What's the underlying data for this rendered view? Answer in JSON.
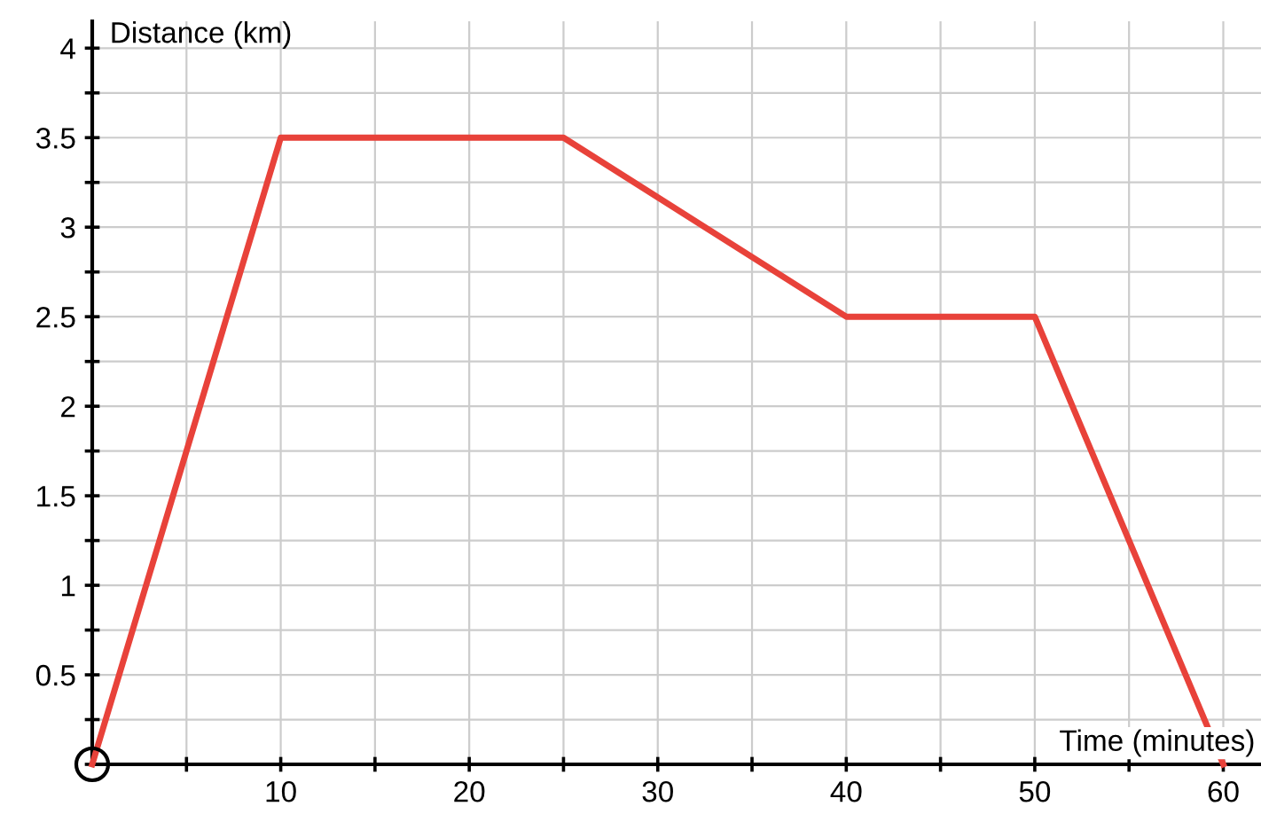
{
  "chart_data": {
    "type": "line",
    "xlabel": "Time (minutes)",
    "ylabel": "Distance (km)",
    "x": [
      0,
      10,
      25,
      40,
      50,
      60
    ],
    "series": [
      {
        "color": "#e8423a",
        "values": [
          0,
          3.5,
          3.5,
          2.5,
          2.5,
          0
        ]
      }
    ],
    "xlim": [
      0,
      62
    ],
    "ylim": [
      0,
      4.15
    ],
    "xticks": [
      {
        "value": 5,
        "label": null
      },
      10,
      {
        "value": 15,
        "label": null
      },
      20,
      {
        "value": 25,
        "label": null
      },
      30,
      {
        "value": 35,
        "label": null
      },
      40,
      {
        "value": 45,
        "label": null
      },
      50,
      {
        "value": 55,
        "label": null
      },
      60
    ],
    "yticks": [
      {
        "value": 0,
        "label": null
      },
      {
        "value": 0.25,
        "label": null
      },
      0.5,
      {
        "value": 0.75,
        "label": null
      },
      1,
      {
        "value": 1.25,
        "label": null
      },
      1.5,
      {
        "value": 1.75,
        "label": null
      },
      2,
      {
        "value": 2.25,
        "label": null
      },
      2.5,
      {
        "value": 2.75,
        "label": null
      },
      3,
      {
        "value": 3.25,
        "label": null
      },
      3.5,
      {
        "value": 3.75,
        "label": null
      },
      4
    ],
    "grid": true,
    "marker": "none",
    "line_style": "solid"
  }
}
